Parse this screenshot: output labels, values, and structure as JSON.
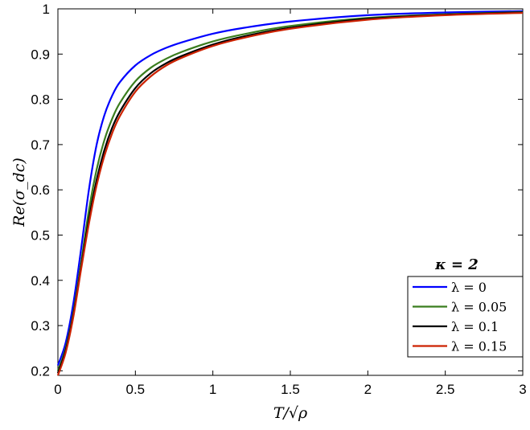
{
  "chart_data": {
    "type": "line",
    "xlabel": "T/√ρ",
    "ylabel": "Re(σ_dc)",
    "xlim": [
      0,
      3
    ],
    "ylim": [
      0.19,
      1.0
    ],
    "xticks": [
      0,
      0.5,
      1,
      1.5,
      2,
      2.5,
      3
    ],
    "xtick_labels": [
      "0",
      "0.5",
      "1",
      "1.5",
      "2",
      "2.5",
      "3"
    ],
    "yticks": [
      0.2,
      0.3,
      0.4,
      0.5,
      0.6,
      0.7,
      0.8,
      0.9,
      1.0
    ],
    "ytick_labels": [
      "0.2",
      "0.3",
      "0.4",
      "0.5",
      "0.6",
      "0.7",
      "0.8",
      "0.9",
      "1"
    ],
    "grid": false,
    "legend": {
      "title": "κ = 2",
      "position": "bottom-right"
    },
    "x": [
      0,
      0.05,
      0.1,
      0.15,
      0.2,
      0.25,
      0.3,
      0.35,
      0.4,
      0.5,
      0.6,
      0.7,
      0.8,
      1.0,
      1.2,
      1.5,
      2.0,
      2.5,
      3.0
    ],
    "series": [
      {
        "name": "λ = 0",
        "color": "#0000ff",
        "values": [
          0.212,
          0.262,
          0.35,
          0.47,
          0.6,
          0.7,
          0.765,
          0.808,
          0.838,
          0.875,
          0.898,
          0.914,
          0.926,
          0.945,
          0.958,
          0.972,
          0.986,
          0.992,
          0.995
        ]
      },
      {
        "name": "λ = 0.05",
        "color": "#3a7d1e",
        "values": [
          0.2,
          0.25,
          0.33,
          0.44,
          0.555,
          0.645,
          0.71,
          0.757,
          0.792,
          0.84,
          0.87,
          0.89,
          0.905,
          0.928,
          0.944,
          0.962,
          0.98,
          0.988,
          0.993
        ]
      },
      {
        "name": "λ = 0.1",
        "color": "#000000",
        "values": [
          0.195,
          0.245,
          0.325,
          0.43,
          0.535,
          0.622,
          0.688,
          0.737,
          0.773,
          0.825,
          0.858,
          0.88,
          0.896,
          0.921,
          0.939,
          0.958,
          0.978,
          0.987,
          0.992
        ]
      },
      {
        "name": "λ = 0.15",
        "color": "#cc2200",
        "values": [
          0.19,
          0.24,
          0.32,
          0.425,
          0.525,
          0.61,
          0.675,
          0.725,
          0.763,
          0.817,
          0.851,
          0.875,
          0.892,
          0.918,
          0.936,
          0.956,
          0.976,
          0.986,
          0.991
        ]
      }
    ]
  }
}
